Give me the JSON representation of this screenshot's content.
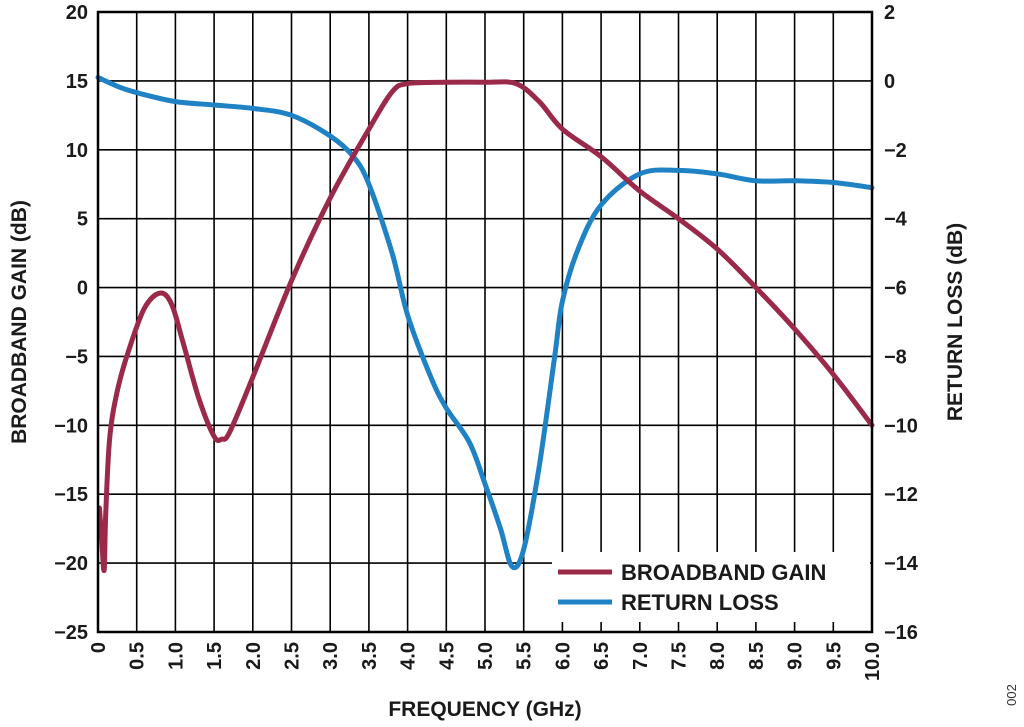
{
  "chart_data": {
    "type": "line",
    "xlabel": "FREQUENCY (GHz)",
    "ylabel_left": "BROADBAND GAIN (dB)",
    "ylabel_right": "RETURN LOSS (dB)",
    "xlim": [
      0,
      10
    ],
    "ylim_left": [
      -25,
      20
    ],
    "ylim_right": [
      -16,
      2
    ],
    "x_ticks": [
      "0",
      "0.5",
      "1.0",
      "1.5",
      "2.0",
      "2.5",
      "3.0",
      "3.5",
      "4.0",
      "4.5",
      "5.0",
      "5.5",
      "6.0",
      "6.5",
      "7.0",
      "7.5",
      "8.0",
      "8.5",
      "9.0",
      "9.5",
      "10.0"
    ],
    "y_ticks_left": [
      "20",
      "15",
      "10",
      "5",
      "0",
      "−5",
      "−10",
      "−15",
      "−20",
      "−25"
    ],
    "y_ticks_right": [
      "2",
      "0",
      "−2",
      "−4",
      "−6",
      "−8",
      "−10",
      "−12",
      "−14",
      "−16"
    ],
    "grid": true,
    "legend_position": "bottom-right",
    "figure_id": "002",
    "series": [
      {
        "name": "BROADBAND GAIN",
        "axis": "left",
        "color": "#9b2a4a",
        "x": [
          0.02,
          0.05,
          0.08,
          0.1,
          0.15,
          0.25,
          0.4,
          0.6,
          0.8,
          0.95,
          1.1,
          1.3,
          1.5,
          1.6,
          1.7,
          2.0,
          2.5,
          3.0,
          3.5,
          3.8,
          4.0,
          4.5,
          5.0,
          5.4,
          5.7,
          6.0,
          6.5,
          7.0,
          7.5,
          8.0,
          8.5,
          9.0,
          9.5,
          10.0
        ],
        "values": [
          -16,
          -18.5,
          -20.5,
          -16.5,
          -11,
          -7.5,
          -4.5,
          -1.5,
          -0.4,
          -1.2,
          -4,
          -8,
          -10.8,
          -11,
          -10.5,
          -6.5,
          0.5,
          6.5,
          11.5,
          14.2,
          14.8,
          14.9,
          14.9,
          14.8,
          13.5,
          11.5,
          9.5,
          7.0,
          5.0,
          2.8,
          0,
          -3,
          -6.3,
          -10
        ]
      },
      {
        "name": "RETURN LOSS",
        "axis": "right",
        "color": "#1f82c4",
        "x": [
          0,
          0.3,
          0.6,
          1.0,
          1.5,
          2.0,
          2.5,
          3.0,
          3.3,
          3.5,
          3.8,
          4.0,
          4.3,
          4.5,
          4.8,
          5.0,
          5.2,
          5.35,
          5.5,
          5.7,
          5.9,
          6.0,
          6.2,
          6.5,
          7.0,
          7.5,
          8.0,
          8.5,
          9.0,
          9.5,
          10.0
        ],
        "values": [
          0.1,
          -0.2,
          -0.4,
          -0.6,
          -0.7,
          -0.8,
          -1.0,
          -1.6,
          -2.2,
          -3.0,
          -5.0,
          -6.8,
          -8.6,
          -9.5,
          -10.5,
          -11.7,
          -13.0,
          -14.1,
          -13.6,
          -11.2,
          -8.0,
          -6.4,
          -4.9,
          -3.6,
          -2.7,
          -2.6,
          -2.7,
          -2.9,
          -2.9,
          -2.95,
          -3.1
        ]
      }
    ]
  }
}
